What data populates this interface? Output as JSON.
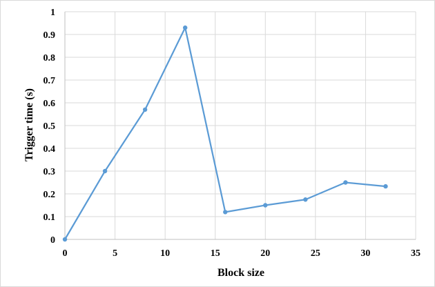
{
  "chart_data": {
    "type": "line",
    "title": "",
    "xlabel": "Block size",
    "ylabel": "Trigger time (s)",
    "xlim": [
      0,
      35
    ],
    "ylim": [
      0,
      1
    ],
    "x_ticks": [
      "0",
      "5",
      "10",
      "15",
      "20",
      "25",
      "30",
      "35"
    ],
    "y_ticks": [
      "0",
      "0.1",
      "0.2",
      "0.3",
      "0.4",
      "0.5",
      "0.6",
      "0.7",
      "0.8",
      "0.9",
      "1"
    ],
    "grid": true,
    "legend": "none",
    "series": [
      {
        "color": "#5b9bd5",
        "x": [
          0,
          4,
          8,
          12,
          16,
          20,
          24,
          28,
          32
        ],
        "y": [
          0,
          0.3,
          0.57,
          0.93,
          0.12,
          0.15,
          0.175,
          0.25,
          0.233
        ]
      }
    ]
  }
}
